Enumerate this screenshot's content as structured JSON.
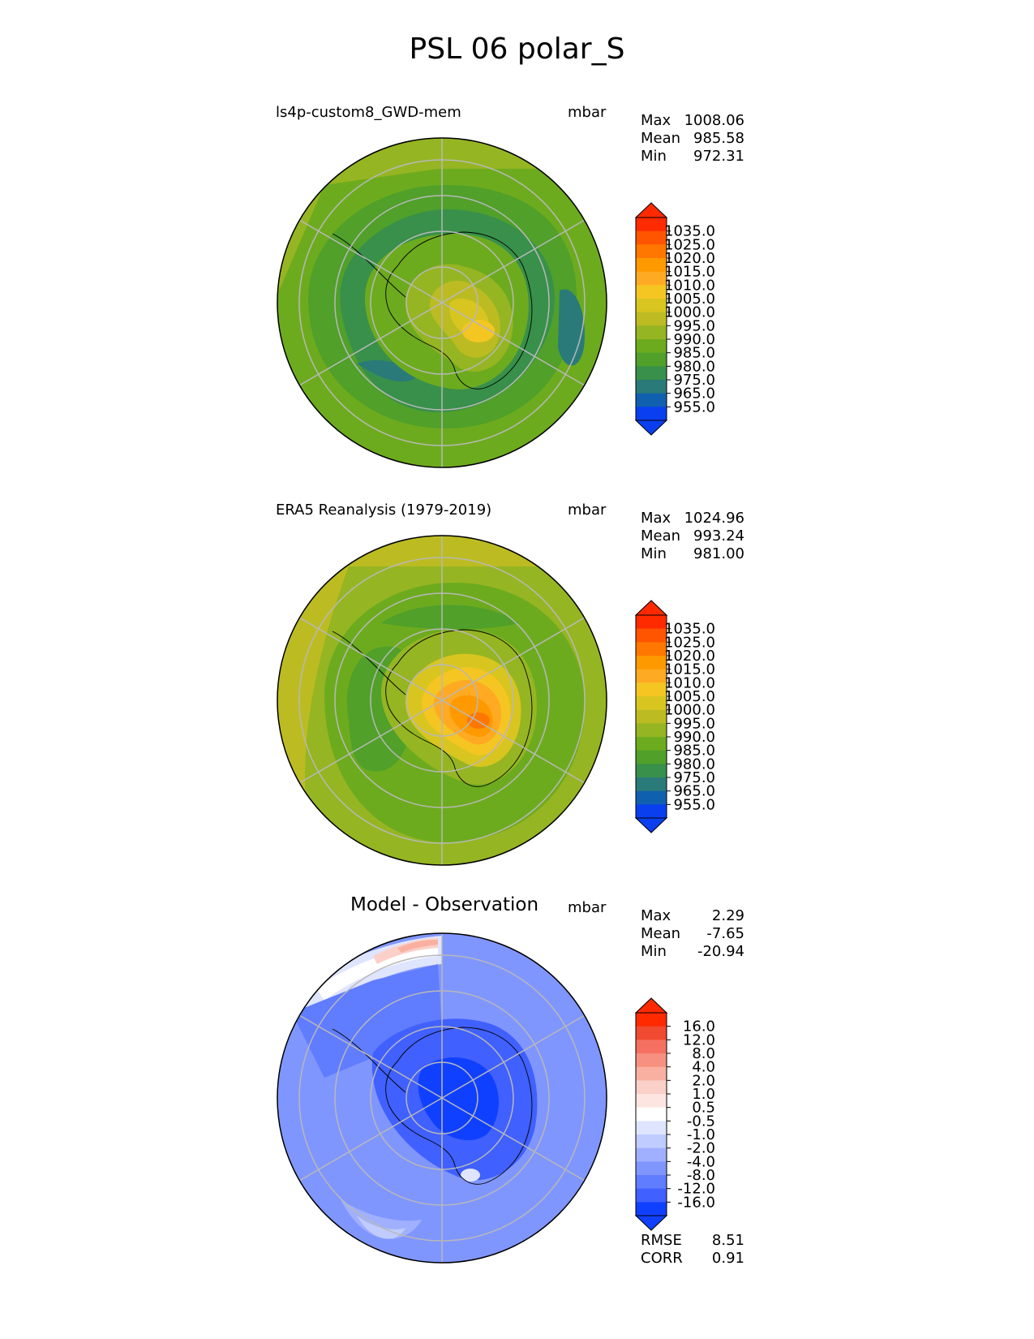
{
  "title": "PSL 06 polar_S",
  "panels": [
    {
      "id": "model",
      "label": "ls4p-custom8_GWD-mem",
      "units": "mbar",
      "stats": {
        "max_label": "Max",
        "max": "1008.06",
        "mean_label": "Mean",
        "mean": "985.58",
        "min_label": "Min",
        "min": "972.31"
      },
      "colorbar": {
        "labels": [
          "1035.0",
          "1025.0",
          "1020.0",
          "1015.0",
          "1010.0",
          "1005.0",
          "1000.0",
          "995.0",
          "990.0",
          "985.0",
          "980.0",
          "975.0",
          "965.0",
          "955.0"
        ],
        "colors": [
          "#ff2a00",
          "#ff5500",
          "#ff7700",
          "#ff9900",
          "#ffaa22",
          "#f5c522",
          "#d8c520",
          "#bcbc22",
          "#96b522",
          "#6dab1e",
          "#50a02a",
          "#38904a",
          "#2a7a7a",
          "#1060b0",
          "#0a3ff0"
        ]
      }
    },
    {
      "id": "obs",
      "label": "ERA5 Reanalysis (1979-2019)",
      "units": "mbar",
      "stats": {
        "max_label": "Max",
        "max": "1024.96",
        "mean_label": "Mean",
        "mean": "993.24",
        "min_label": "Min",
        "min": "981.00"
      },
      "colorbar": {
        "labels": [
          "1035.0",
          "1025.0",
          "1020.0",
          "1015.0",
          "1010.0",
          "1005.0",
          "1000.0",
          "995.0",
          "990.0",
          "985.0",
          "980.0",
          "975.0",
          "965.0",
          "955.0"
        ],
        "colors": [
          "#ff2a00",
          "#ff5500",
          "#ff7700",
          "#ff9900",
          "#ffaa22",
          "#f5c522",
          "#d8c520",
          "#bcbc22",
          "#96b522",
          "#6dab1e",
          "#50a02a",
          "#38904a",
          "#2a7a7a",
          "#1060b0",
          "#0a3ff0"
        ]
      }
    },
    {
      "id": "diff",
      "label": "Model - Observation",
      "units": "mbar",
      "stats": {
        "max_label": "Max",
        "max": "2.29",
        "mean_label": "Mean",
        "mean": "-7.65",
        "min_label": "Min",
        "min": "-20.94"
      },
      "colorbar": {
        "labels": [
          "16.0",
          "12.0",
          "8.0",
          "4.0",
          "2.0",
          "1.0",
          "0.5",
          "-0.5",
          "-1.0",
          "-2.0",
          "-4.0",
          "-8.0",
          "-12.0",
          "-16.0"
        ],
        "colors": [
          "#ff2a00",
          "#f04a30",
          "#f57060",
          "#f79080",
          "#f9b0a0",
          "#fbd0c8",
          "#fde6e2",
          "#ffffff",
          "#dfe5ff",
          "#c0cbff",
          "#a0b0ff",
          "#8096ff",
          "#607cff",
          "#4060ff",
          "#1040ff"
        ]
      }
    }
  ],
  "metrics": {
    "rmse_label": "RMSE",
    "rmse": "8.51",
    "corr_label": "CORR",
    "corr": "0.91"
  }
}
